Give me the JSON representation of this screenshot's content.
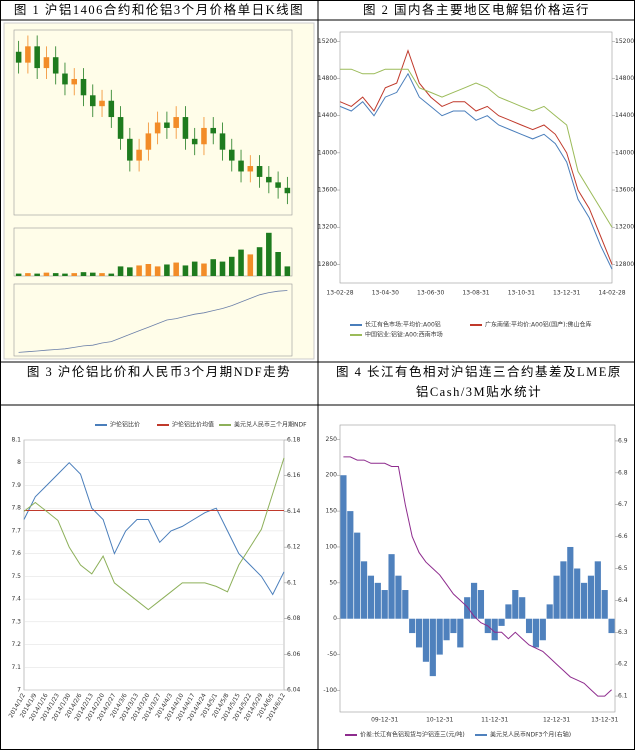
{
  "chart_data": [
    {
      "type": "candlestick",
      "title": "图 1 沪铝1406合约和伦铝3个月价格单日K线图",
      "open": [
        14100,
        14000,
        14150,
        13950,
        14050,
        13900,
        13800,
        13850,
        13700,
        13600,
        13650,
        13500,
        13300,
        13100,
        13200,
        13350,
        13450,
        13400,
        13500,
        13300,
        13250,
        13400,
        13350,
        13200,
        13100,
        13000,
        13050,
        12950,
        12900,
        12850
      ],
      "close": [
        14000,
        14150,
        13950,
        14050,
        13900,
        13800,
        13850,
        13700,
        13600,
        13650,
        13500,
        13300,
        13100,
        13200,
        13350,
        13450,
        13400,
        13500,
        13300,
        13250,
        13400,
        13350,
        13200,
        13100,
        13000,
        13050,
        12950,
        12900,
        12850,
        12800
      ],
      "high": [
        14200,
        14250,
        14250,
        14150,
        14150,
        14000,
        13950,
        13950,
        13800,
        13750,
        13750,
        13600,
        13400,
        13300,
        13450,
        13550,
        13550,
        13600,
        13600,
        13400,
        13500,
        13500,
        13450,
        13300,
        13200,
        13150,
        13150,
        13050,
        13000,
        12950
      ],
      "low": [
        13900,
        13900,
        13850,
        13850,
        13800,
        13700,
        13700,
        13600,
        13500,
        13500,
        13400,
        13200,
        13000,
        13000,
        13100,
        13250,
        13300,
        13300,
        13200,
        13150,
        13150,
        13250,
        13100,
        13000,
        12900,
        12900,
        12850,
        12800,
        12750,
        12700
      ],
      "ylim": [
        12600,
        14300
      ],
      "up_color": "#f28c28",
      "down_color": "#1e7b1e",
      "volume": [
        5,
        6,
        5,
        7,
        6,
        5,
        6,
        8,
        7,
        6,
        5,
        20,
        18,
        22,
        25,
        20,
        24,
        28,
        22,
        30,
        26,
        35,
        30,
        40,
        55,
        45,
        60,
        90,
        50,
        20
      ],
      "volume_ylim": [
        0,
        100
      ],
      "interest": [
        5,
        6,
        7,
        8,
        9,
        10,
        12,
        14,
        15,
        18,
        20,
        25,
        30,
        35,
        40,
        45,
        50,
        52,
        55,
        58,
        60,
        63,
        66,
        70,
        75,
        80,
        85,
        88,
        90,
        91
      ],
      "interest_ylim": [
        0,
        100
      ],
      "interest_color": "#6b7fa8"
    },
    {
      "type": "line",
      "title": "图 2 国内各主要地区电解铝价格运行",
      "categories": [
        "13-02-28",
        null,
        null,
        null,
        "13-04-30",
        null,
        null,
        null,
        "13-06-30",
        null,
        null,
        null,
        "13-08-31",
        null,
        null,
        null,
        "13-10-31",
        null,
        null,
        null,
        "13-12-31",
        null,
        null,
        null,
        "14-02-28"
      ],
      "series": [
        {
          "name": "长江有色市场:平均价:A00铝",
          "color": "#4a7ebb",
          "values": [
            14500,
            14450,
            14550,
            14400,
            14600,
            14650,
            14850,
            14600,
            14500,
            14400,
            14450,
            14450,
            14350,
            14400,
            14300,
            14250,
            14200,
            14150,
            14200,
            14100,
            13900,
            13500,
            13300,
            13000,
            12750
          ]
        },
        {
          "name": "广东南储:平均价:A00铝(国产):佛山仓库",
          "color": "#c0392b",
          "values": [
            14550,
            14500,
            14600,
            14450,
            14700,
            14750,
            15100,
            14750,
            14600,
            14500,
            14550,
            14550,
            14450,
            14500,
            14400,
            14350,
            14300,
            14250,
            14300,
            14200,
            14000,
            13600,
            13400,
            13100,
            12800
          ]
        },
        {
          "name": "中国铝业:铝锭:A00:西南市场",
          "color": "#9bbb59",
          "values": [
            14900,
            14900,
            14850,
            14850,
            14900,
            14900,
            14900,
            14700,
            14650,
            14600,
            14650,
            14700,
            14750,
            14700,
            14600,
            14550,
            14500,
            14450,
            14500,
            14400,
            14300,
            13800,
            13600,
            13400,
            13200
          ]
        }
      ],
      "ylim": [
        12600,
        15300
      ],
      "yticks": [
        12800,
        13200,
        13600,
        14000,
        14400,
        14800,
        15200
      ]
    },
    {
      "type": "line",
      "title": "图 3 沪伦铝比价和人民币3个月期NDF走势",
      "categories": [
        "2014/1/2",
        "2014/1/9",
        "2014/1/16",
        "2014/1/23",
        "2014/1/30",
        "2014/2/6",
        "2014/2/13",
        "2014/2/20",
        "2014/2/27",
        "2014/3/6",
        "2014/3/13",
        "2014/3/20",
        "2014/3/27",
        "2014/4/3",
        "2014/4/10",
        "2014/4/17",
        "2014/4/24",
        "2014/5/1",
        "2014/5/8",
        "2014/5/15",
        "2014/5/22",
        "2014/5/29",
        "2014/6/5",
        "2014/6/12"
      ],
      "series": [
        {
          "name": "沪伦铝比价",
          "color": "#4a7ebb",
          "values": [
            7.75,
            7.85,
            7.9,
            7.95,
            8.0,
            7.95,
            7.8,
            7.75,
            7.6,
            7.7,
            7.75,
            7.75,
            7.65,
            7.7,
            7.72,
            7.75,
            7.78,
            7.8,
            7.7,
            7.6,
            7.55,
            7.5,
            7.42,
            7.52
          ]
        },
        {
          "name": "沪伦铝比价均值",
          "color": "#c0392b",
          "values": [
            7.79,
            7.79,
            7.79,
            7.79,
            7.79,
            7.79,
            7.79,
            7.79,
            7.79,
            7.79,
            7.79,
            7.79,
            7.79,
            7.79,
            7.79,
            7.79,
            7.79,
            7.79,
            7.79,
            7.79,
            7.79,
            7.79,
            7.79,
            7.79
          ]
        },
        {
          "name": "美元兑人民币三个月期NDF",
          "color": "#8db05a",
          "axis": "y2",
          "values": [
            6.14,
            6.145,
            6.14,
            6.135,
            6.12,
            6.11,
            6.105,
            6.115,
            6.1,
            6.095,
            6.09,
            6.085,
            6.09,
            6.095,
            6.1,
            6.1,
            6.1,
            6.098,
            6.095,
            6.11,
            6.12,
            6.13,
            6.15,
            6.17
          ]
        }
      ],
      "ylim": [
        7,
        8.1
      ],
      "yticks": [
        7,
        7.1,
        7.2,
        7.3,
        7.4,
        7.5,
        7.6,
        7.7,
        7.8,
        7.9,
        8,
        8.1
      ],
      "y2lim": [
        6.04,
        6.18
      ],
      "y2ticks": [
        6.04,
        6.06,
        6.08,
        6.1,
        6.12,
        6.14,
        6.16,
        6.18
      ],
      "grid": true
    },
    {
      "type": "combo",
      "title": "图 4 长江有色相对沪铝连三合约基差及LME原铝Cash/3M贴水统计",
      "categories": [
        null,
        null,
        null,
        null,
        null,
        null,
        "09-12-31",
        null,
        null,
        null,
        null,
        null,
        null,
        null,
        "10-12-31",
        null,
        null,
        null,
        null,
        null,
        null,
        null,
        "11-12-31",
        null,
        null,
        null,
        null,
        null,
        null,
        null,
        null,
        "12-12-31",
        null,
        null,
        null,
        null,
        null,
        null,
        "13-12-31",
        null
      ],
      "series": [
        {
          "name": "价差:长江有色铝现货与沪铝连三(元/吨)",
          "color": "#4f81bd",
          "type": "bar",
          "values": [
            200,
            150,
            120,
            80,
            60,
            50,
            40,
            90,
            60,
            40,
            -20,
            -40,
            -60,
            -80,
            -50,
            -30,
            -20,
            -40,
            30,
            50,
            40,
            -20,
            -30,
            -10,
            20,
            40,
            30,
            -20,
            -40,
            -30,
            20,
            60,
            80,
            100,
            70,
            50,
            60,
            80,
            40,
            -20
          ]
        },
        {
          "name": "美元兑人民币NDF3个月(右轴)",
          "color": "#8e2c8e",
          "type": "line",
          "axis": "y2",
          "values": [
            6.85,
            6.85,
            6.84,
            6.84,
            6.83,
            6.83,
            6.83,
            6.82,
            6.82,
            6.7,
            6.6,
            6.55,
            6.52,
            6.5,
            6.48,
            6.45,
            6.42,
            6.4,
            6.38,
            6.35,
            6.33,
            6.32,
            6.3,
            6.3,
            6.28,
            6.3,
            6.28,
            6.26,
            6.25,
            6.24,
            6.22,
            6.2,
            6.18,
            6.16,
            6.15,
            6.14,
            6.12,
            6.1,
            6.1,
            6.12
          ]
        }
      ],
      "ylim": [
        -130,
        270
      ],
      "yticks": [
        -100,
        -50,
        0,
        50,
        100,
        150,
        200,
        250
      ],
      "y2lim": [
        6.05,
        6.95
      ],
      "y2ticks": [
        6.1,
        6.2,
        6.3,
        6.4,
        6.5,
        6.6,
        6.7,
        6.8,
        6.9
      ]
    }
  ]
}
